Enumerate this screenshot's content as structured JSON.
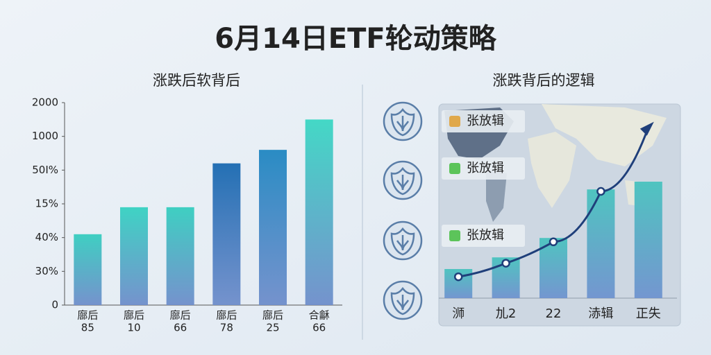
{
  "title": "6月14日ETF轮动策略",
  "chart_data": [
    {
      "type": "bar",
      "title": "涨跌后软背后",
      "categories": [
        [
          "廍后",
          "85"
        ],
        [
          "廍后",
          "10"
        ],
        [
          "廍后",
          "66"
        ],
        [
          "廍后",
          "78"
        ],
        [
          "廍后",
          "25"
        ],
        [
          "合龢",
          "66"
        ]
      ],
      "values": [
        2.1,
        2.9,
        2.9,
        4.2,
        4.6,
        5.5
      ],
      "colors": [
        "#3fcfc2",
        "#3fd3c4",
        "#3fcfc2",
        "#2470b4",
        "#2a8cc4",
        "#44d8c6"
      ],
      "ylim": [
        0,
        6
      ],
      "yticks": [
        0,
        {
          "value": 1,
          "label": "30%"
        },
        {
          "value": 2,
          "label": "40%"
        },
        {
          "value": 3,
          "label": "15%"
        },
        {
          "value": 4,
          "label": "50I%"
        },
        {
          "value": 5,
          "label": "1000"
        },
        {
          "value": 6,
          "label": "2000"
        }
      ]
    },
    {
      "type": "combo",
      "title": "涨跌背后的逻辑",
      "categories": [
        "浉",
        "劜2",
        "22",
        "浾辑",
        "正失"
      ],
      "annotations": [
        "张放辑",
        "张放辑",
        "张放辑"
      ],
      "series": [
        {
          "type": "bar",
          "color": "#4fc4c0",
          "values": [
            15,
            21,
            31,
            56,
            60
          ]
        },
        {
          "type": "line",
          "color": "#1f3f7a",
          "values": [
            11,
            18,
            29,
            55,
            88
          ]
        }
      ]
    }
  ]
}
